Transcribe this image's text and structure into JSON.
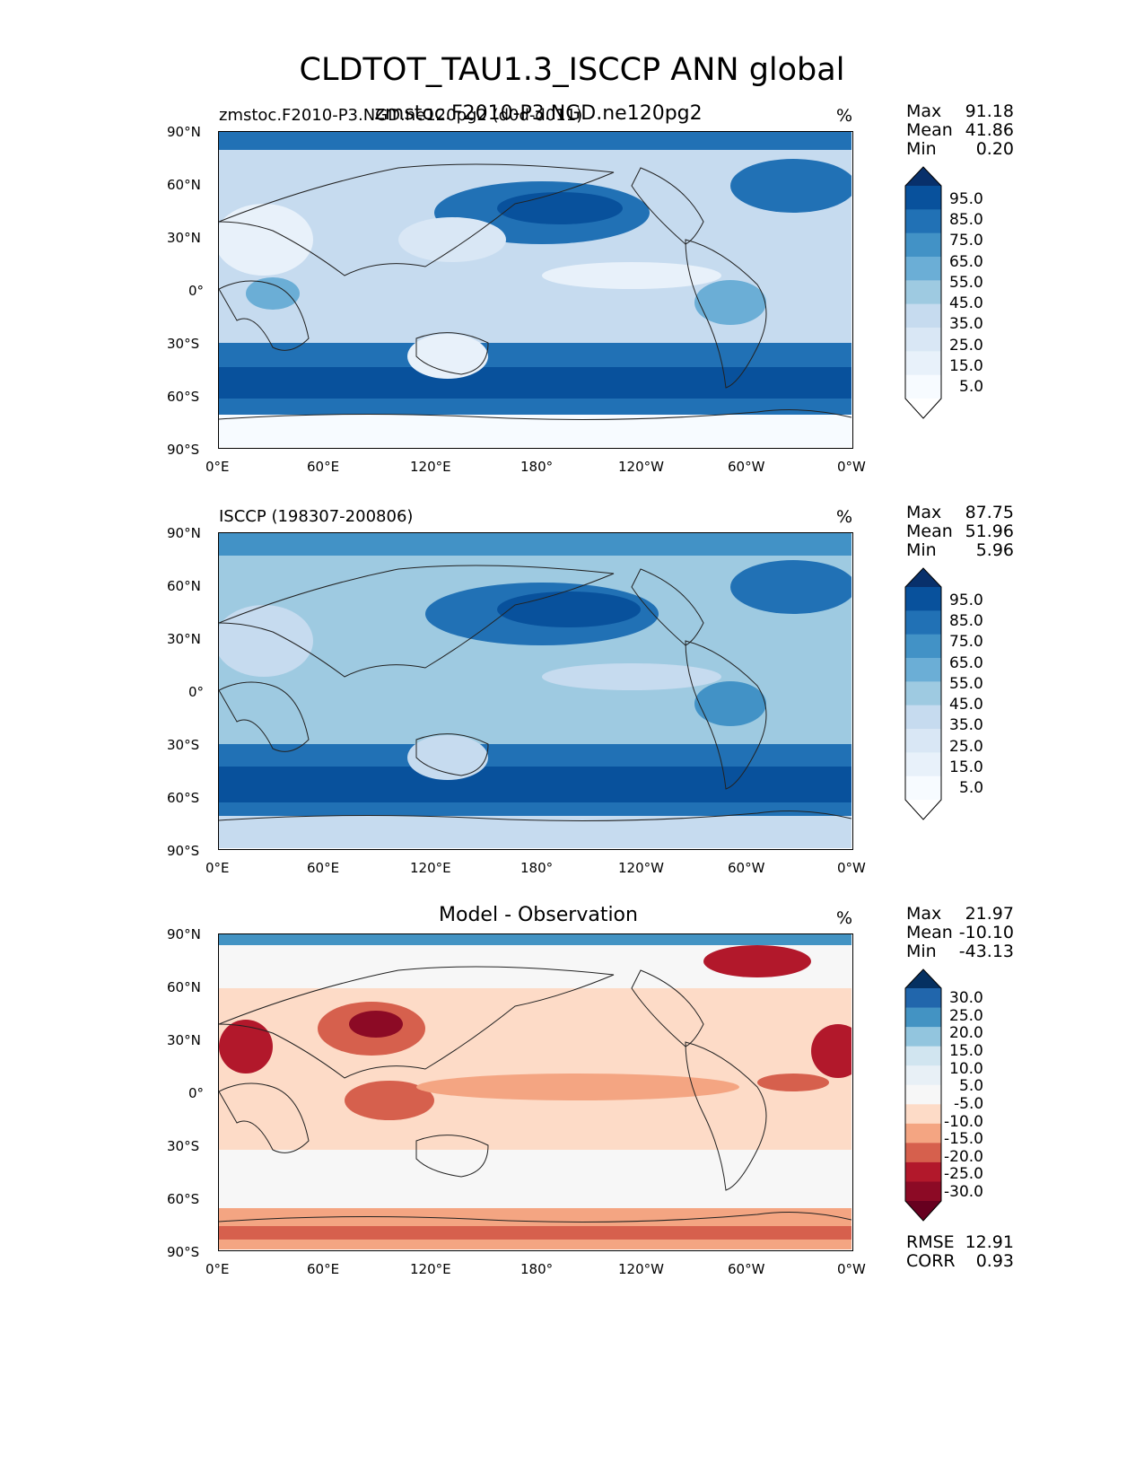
{
  "title": "CLDTOT_TAU1.3_ISCCP ANN global",
  "panels": [
    {
      "id": "model",
      "left_title": "zmstoc.F2010-P3.NGD.ne120pg2 (d0d-d011)",
      "center_title": "zmstoc.F2010-P3.NGD.ne120pg2",
      "unit": "%",
      "stats": {
        "max_label": "Max",
        "max": "91.18",
        "mean_label": "Mean",
        "mean": "41.86",
        "min_label": "Min",
        "min": "0.20"
      },
      "colorbar": {
        "labels": [
          "95.0",
          "85.0",
          "75.0",
          "65.0",
          "55.0",
          "45.0",
          "35.0",
          "25.0",
          "15.0",
          "5.0"
        ],
        "colors": [
          "#08306b",
          "#08519c",
          "#2171b5",
          "#4292c6",
          "#6baed6",
          "#9ecae1",
          "#c6dbef",
          "#d9e7f5",
          "#e8f1fa",
          "#f7fbff",
          "#ffffff"
        ]
      },
      "map_colors": {
        "base": "#c6dbef",
        "storm": "#2171b5",
        "deep": "#08519c",
        "light": "#e8f1fa",
        "pole": "#f7fbff"
      }
    },
    {
      "id": "obs",
      "left_title": "ISCCP (198307-200806)",
      "center_title": "",
      "unit": "%",
      "stats": {
        "max_label": "Max",
        "max": "87.75",
        "mean_label": "Mean",
        "mean": "51.96",
        "min_label": "Min",
        "min": "5.96"
      },
      "colorbar": {
        "labels": [
          "95.0",
          "85.0",
          "75.0",
          "65.0",
          "55.0",
          "45.0",
          "35.0",
          "25.0",
          "15.0",
          "5.0"
        ],
        "colors": [
          "#08306b",
          "#08519c",
          "#2171b5",
          "#4292c6",
          "#6baed6",
          "#9ecae1",
          "#c6dbef",
          "#d9e7f5",
          "#e8f1fa",
          "#f7fbff",
          "#ffffff"
        ]
      },
      "map_colors": {
        "base": "#9ecae1",
        "storm": "#2171b5",
        "deep": "#08519c",
        "light": "#c6dbef",
        "pole": "#c6dbef"
      }
    },
    {
      "id": "diff",
      "left_title": "",
      "center_title": "Model - Observation",
      "unit": "%",
      "stats": {
        "max_label": "Max",
        "max": "21.97",
        "mean_label": "Mean",
        "mean": "-10.10",
        "min_label": "Min",
        "min": "-43.13"
      },
      "colorbar": {
        "labels": [
          "30.0",
          "25.0",
          "20.0",
          "15.0",
          "10.0",
          "5.0",
          "-5.0",
          "-10.0",
          "-15.0",
          "-20.0",
          "-25.0",
          "-30.0"
        ],
        "colors": [
          "#053061",
          "#2166ac",
          "#4393c3",
          "#92c5de",
          "#d1e5f0",
          "#e8f0f6",
          "#f7f7f7",
          "#fddbc7",
          "#f4a582",
          "#d6604d",
          "#b2182b",
          "#8c0a25",
          "#67001f"
        ]
      },
      "map_colors": {
        "base": "#f7f7f7",
        "storm": "#fddbc7",
        "deep": "#d6604d",
        "light": "#f4a582",
        "pole": "#b2182b"
      },
      "extra_stats": {
        "rmse_label": "RMSE",
        "rmse": "12.91",
        "corr_label": "CORR",
        "corr": "0.93"
      }
    }
  ],
  "x_ticks": [
    "0°E",
    "60°E",
    "120°E",
    "180°",
    "120°W",
    "60°W",
    "0°W"
  ],
  "y_ticks": [
    "90°N",
    "60°N",
    "30°N",
    "0°",
    "30°S",
    "60°S",
    "90°S"
  ]
}
